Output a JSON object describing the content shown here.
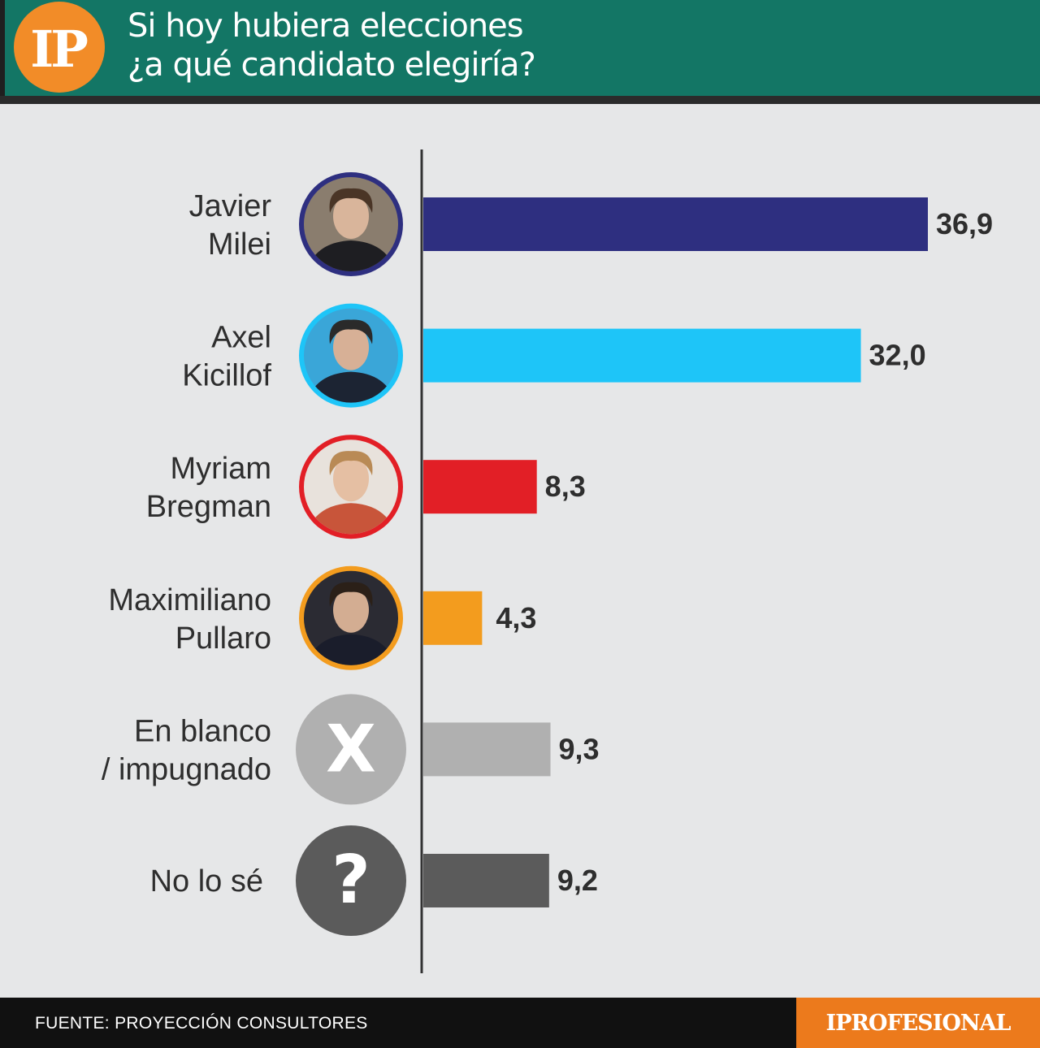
{
  "header": {
    "logo_text": "IP",
    "title_line1": "Si hoy hubiera elecciones",
    "title_line2": "¿a qué candidato elegiría?"
  },
  "footer": {
    "source": "FUENTE: PROYECCIÓN CONSULTORES",
    "brand": "IPROFESIONAL"
  },
  "chart_data": {
    "type": "bar",
    "orientation": "horizontal",
    "title": "Si hoy hubiera elecciones ¿a qué candidato elegiría?",
    "categories": [
      [
        "Javier",
        "Milei"
      ],
      [
        "Axel",
        "Kicillof"
      ],
      [
        "Myriam",
        "Bregman"
      ],
      [
        "Maximiliano",
        "Pullaro"
      ],
      [
        "En blanco",
        "/ impugnado"
      ],
      [
        "No lo sé"
      ]
    ],
    "values": [
      36.9,
      32.0,
      8.3,
      4.3,
      9.3,
      9.2
    ],
    "value_labels": [
      "36,9",
      "32,0",
      "8,3",
      "4,3",
      "9,3",
      "9,2"
    ],
    "colors": [
      "#2e2f80",
      "#1ec5f8",
      "#e21f26",
      "#f39c1e",
      "#b0b0b0",
      "#5b5b5b"
    ],
    "icons": [
      "portrait-milei",
      "portrait-kicillof",
      "portrait-bregman",
      "portrait-pullaro",
      "x-icon",
      "question-icon"
    ],
    "xlim": [
      0,
      40
    ],
    "grid": false,
    "legend": "none"
  }
}
